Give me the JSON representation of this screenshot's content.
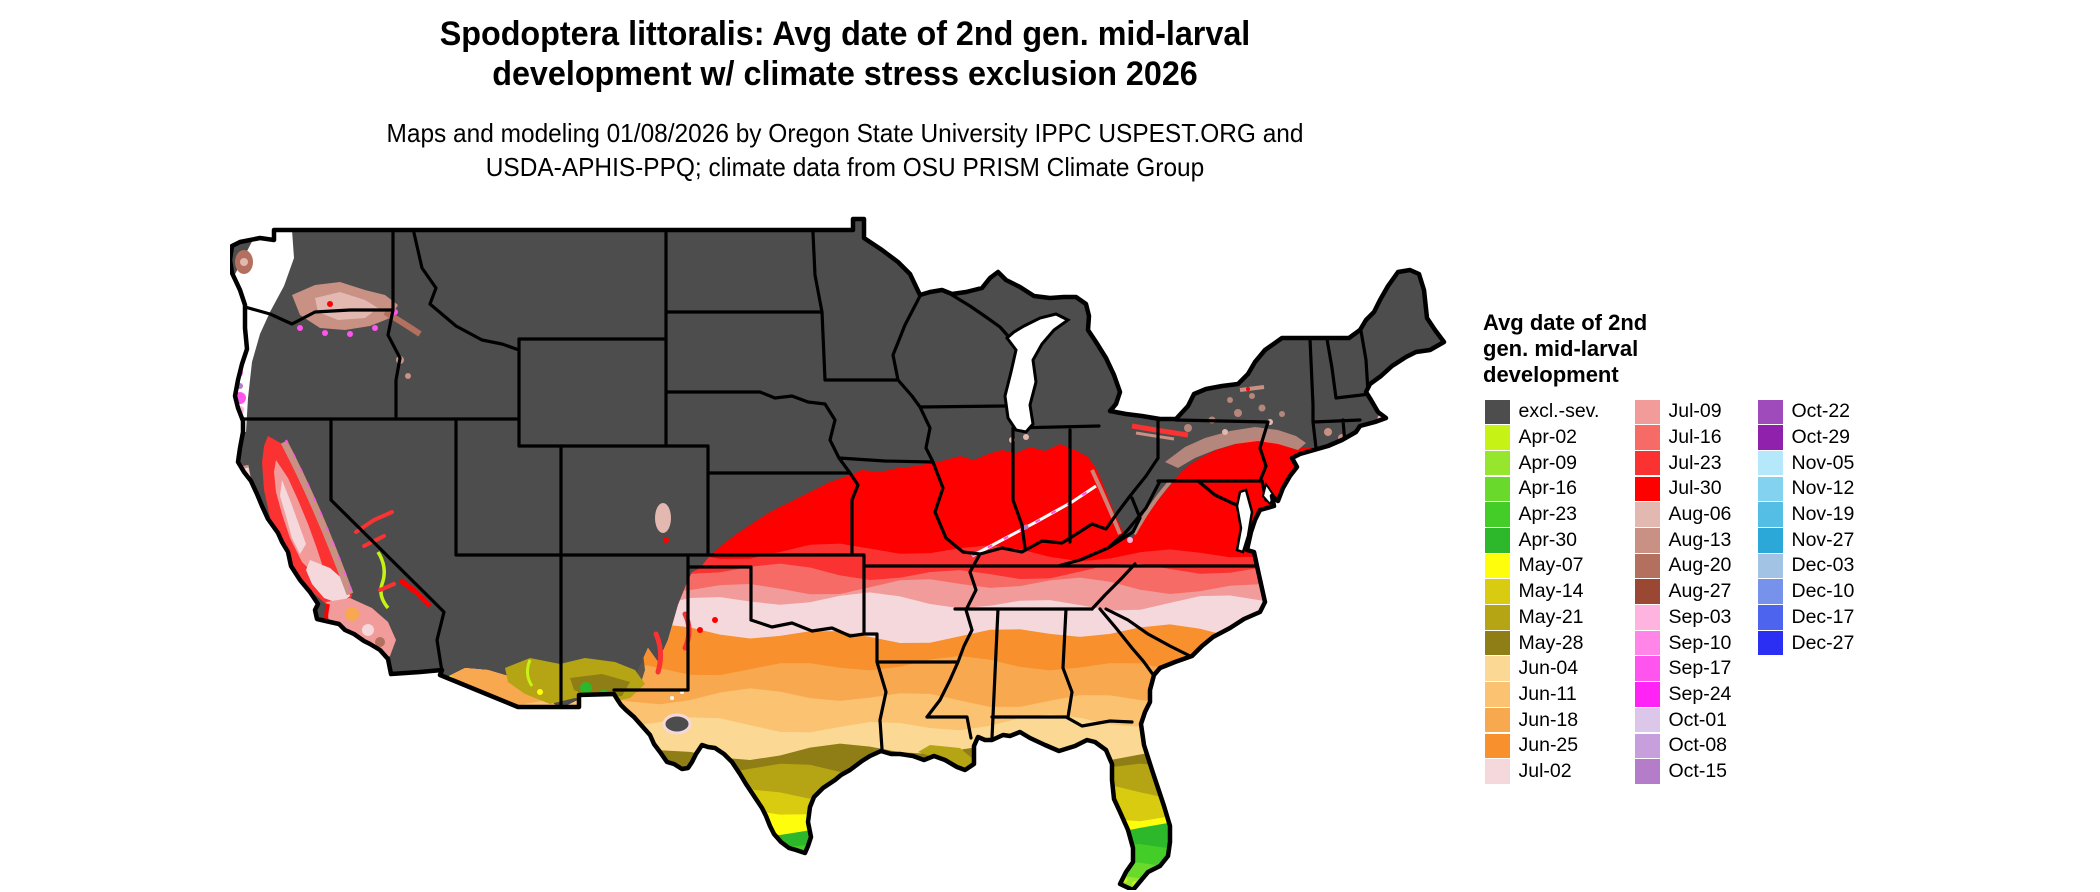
{
  "title": {
    "line1": "Spodoptera littoralis: Avg date of 2nd gen. mid-larval",
    "line2": "development w/ climate stress exclusion 2026"
  },
  "subtitle": {
    "line1": "Maps and modeling 01/08/2026 by Oregon State University IPPC USPEST.ORG and",
    "line2": "USDA-APHIS-PPQ; climate data from OSU PRISM Climate Group"
  },
  "legend": {
    "title_lines": [
      "Avg date of 2nd",
      "gen. mid-larval",
      "development"
    ],
    "columns": [
      [
        {
          "label": "excl.-sev.",
          "color": "#4D4D4D"
        },
        {
          "label": "Apr-02",
          "color": "#C6F216"
        },
        {
          "label": "Apr-09",
          "color": "#96E62E"
        },
        {
          "label": "Apr-16",
          "color": "#69DA2B"
        },
        {
          "label": "Apr-23",
          "color": "#44CD28"
        },
        {
          "label": "Apr-30",
          "color": "#2DB72A"
        },
        {
          "label": "May-07",
          "color": "#FEFE0C"
        },
        {
          "label": "May-14",
          "color": "#D9CB10"
        },
        {
          "label": "May-21",
          "color": "#B5A413"
        },
        {
          "label": "May-28",
          "color": "#8F7D15"
        },
        {
          "label": "Jun-04",
          "color": "#FBD994"
        },
        {
          "label": "Jun-11",
          "color": "#FAC271"
        },
        {
          "label": "Jun-18",
          "color": "#F8A950"
        },
        {
          "label": "Jun-25",
          "color": "#F7902D"
        },
        {
          "label": "Jul-02",
          "color": "#F5D8DB"
        }
      ],
      [
        {
          "label": "Jul-09",
          "color": "#F29B9B"
        },
        {
          "label": "Jul-16",
          "color": "#F76B66"
        },
        {
          "label": "Jul-23",
          "color": "#FA3231"
        },
        {
          "label": "Jul-30",
          "color": "#FE0000"
        },
        {
          "label": "Aug-06",
          "color": "#E2B8B0"
        },
        {
          "label": "Aug-13",
          "color": "#C89184"
        },
        {
          "label": "Aug-20",
          "color": "#B3705F"
        },
        {
          "label": "Aug-27",
          "color": "#9A4733"
        },
        {
          "label": "Sep-03",
          "color": "#FFB3DF"
        },
        {
          "label": "Sep-10",
          "color": "#FF85E9"
        },
        {
          "label": "Sep-17",
          "color": "#FF55EE"
        },
        {
          "label": "Sep-24",
          "color": "#FF24F5"
        },
        {
          "label": "Oct-01",
          "color": "#DCC6EA"
        },
        {
          "label": "Oct-08",
          "color": "#C79FDC"
        },
        {
          "label": "Oct-15",
          "color": "#B47CC9"
        }
      ],
      [
        {
          "label": "Oct-22",
          "color": "#9F4BBB"
        },
        {
          "label": "Oct-29",
          "color": "#8F21AC"
        },
        {
          "label": "Nov-05",
          "color": "#B5E8FB"
        },
        {
          "label": "Nov-12",
          "color": "#83D2F0"
        },
        {
          "label": "Nov-19",
          "color": "#54BEE4"
        },
        {
          "label": "Nov-27",
          "color": "#2BA7D8"
        },
        {
          "label": "Dec-03",
          "color": "#A3C3E4"
        },
        {
          "label": "Dec-10",
          "color": "#7792EB"
        },
        {
          "label": "Dec-17",
          "color": "#4D64EE"
        },
        {
          "label": "Dec-27",
          "color": "#2B2FF3"
        }
      ]
    ]
  },
  "chart_data": {
    "type": "choropleth-map",
    "region": "Continental United States with state boundaries",
    "variable": "Avg date of 2nd gen. mid-larval development",
    "excluded_class": "excl.-sev.",
    "visible_pattern": [
      {
        "area": "Northern tier, Rockies, Great Basin, upper Midwest, New England interior",
        "class": "excl.-sev."
      },
      {
        "area": "Ohio Valley, Missouri, Illinois, Kentucky, Virginia coastal plain",
        "class": "Jul-23 to Jul-30"
      },
      {
        "area": "Kansas, Tennessee, North Carolina band",
        "class": "Jul-02 to Jul-16"
      },
      {
        "area": "Oklahoma, Arkansas, Deep South, Texas interior",
        "class": "Jun-04 to Jun-25"
      },
      {
        "area": "South Texas and Louisiana coast",
        "class": "May-07 to May-28"
      },
      {
        "area": "Rio Grande Valley tip of Texas",
        "class": "Apr-16 to Apr-30"
      },
      {
        "area": "Central and south Florida",
        "class": "Apr-09 to May-14"
      },
      {
        "area": "Florida Keys",
        "class": "Apr-02"
      },
      {
        "area": "California Central Valley and coast",
        "class": "Jul-02 to Jul-30 with Aug-13 fringes"
      },
      {
        "area": "Pacific Northwest coast",
        "class": "Sep-Oct pinks/magentas with excluded pockets"
      },
      {
        "area": "Columbia Basin, Washington",
        "class": "Aug-06 to Aug-20"
      },
      {
        "area": "Southern Arizona / southwest New Mexico",
        "class": "May-21 to Jun-18 with Apr-30 pockets"
      },
      {
        "area": "Pennsylvania / southern New York / southern New England coast",
        "class": "Aug-06 to Aug-13 transition speckle"
      }
    ]
  }
}
